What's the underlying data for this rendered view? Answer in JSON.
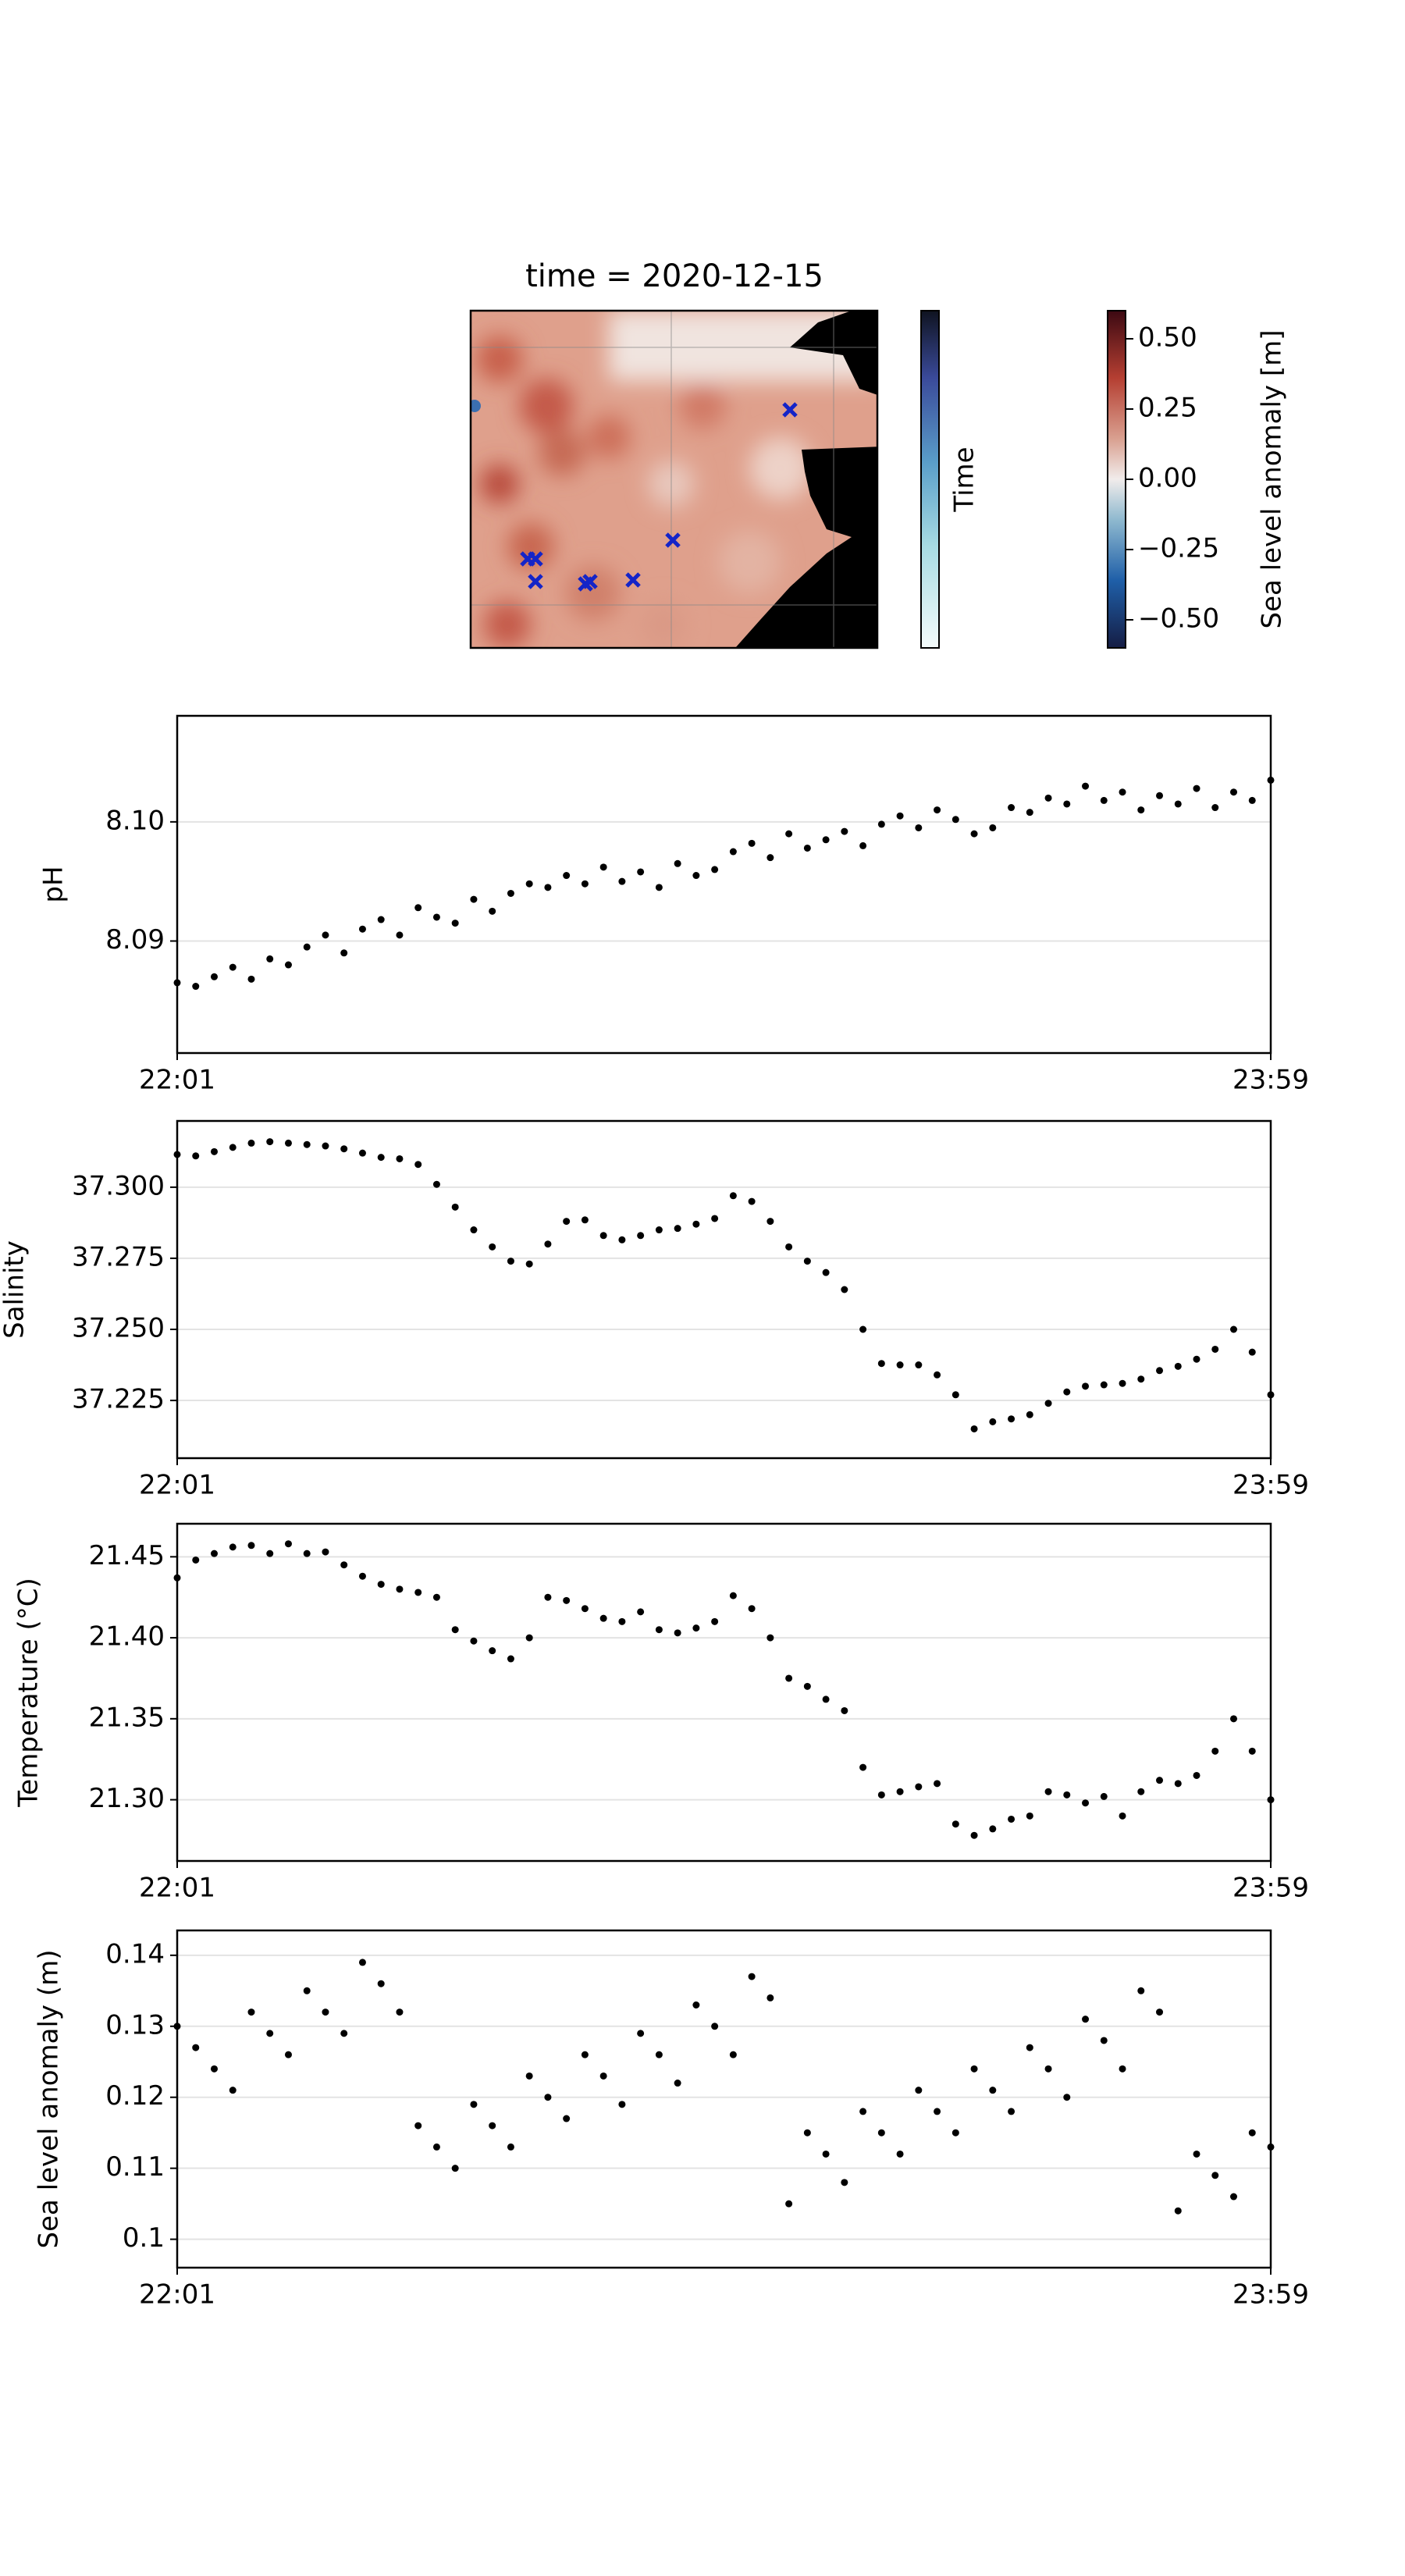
{
  "chart_data": [
    {
      "type": "map",
      "title": "time = 2020-12-15",
      "colorbars": [
        {
          "label": "Time"
        },
        {
          "label": "Sea level anomaly [m]",
          "lim": [
            -0.6,
            0.6
          ],
          "ticks": [
            {
              "value": 0.5,
              "label": "0.50"
            },
            0.25,
            {
              "value": 0,
              "label": "0.00"
            },
            {
              "value": -0.25,
              "label": "−0.25"
            },
            {
              "value": -0.5,
              "label": "−0.50"
            }
          ]
        }
      ]
    },
    {
      "type": "scatter",
      "ylabel": "pH",
      "color": "#000000",
      "grid": true,
      "x": [
        "22:01",
        "22:03",
        "22:05",
        "22:07",
        "22:09",
        "22:11",
        "22:13",
        "22:15",
        "22:17",
        "22:19",
        "22:21",
        "22:23",
        "22:25",
        "22:27",
        "22:29",
        "22:31",
        "22:33",
        "22:35",
        "22:37",
        "22:39",
        "22:41",
        "22:43",
        "22:45",
        "22:47",
        "22:49",
        "22:51",
        "22:53",
        "22:55",
        "22:57",
        "22:59",
        "23:01",
        "23:03",
        "23:05",
        "23:07",
        "23:09",
        "23:11",
        "23:13",
        "23:15",
        "23:17",
        "23:19",
        "23:21",
        "23:23",
        "23:25",
        "23:27",
        "23:29",
        "23:31",
        "23:33",
        "23:35",
        "23:37",
        "23:39",
        "23:41",
        "23:43",
        "23:45",
        "23:47",
        "23:49",
        "23:51",
        "23:53",
        "23:55",
        "23:57",
        "23:59"
      ],
      "values": [
        8.0865,
        8.0862,
        8.087,
        8.0878,
        8.0868,
        8.0885,
        8.088,
        8.0895,
        8.0905,
        8.089,
        8.091,
        8.0918,
        8.0905,
        8.0928,
        8.092,
        8.0915,
        8.0935,
        8.0925,
        8.094,
        8.0948,
        8.0945,
        8.0955,
        8.0948,
        8.0962,
        8.095,
        8.0958,
        8.0945,
        8.0965,
        8.0955,
        8.096,
        8.0975,
        8.0982,
        8.097,
        8.099,
        8.0978,
        8.0985,
        8.0992,
        8.098,
        8.0998,
        8.1005,
        8.0995,
        8.101,
        8.1002,
        8.099,
        8.0995,
        8.1012,
        8.1008,
        8.102,
        8.1015,
        8.103,
        8.1018,
        8.1025,
        8.101,
        8.1022,
        8.1015,
        8.1028,
        8.1012,
        8.1025,
        8.1018,
        8.1035
      ],
      "xlim": [
        "22:01",
        "23:59"
      ],
      "xticks": [
        "22:01",
        "23:59"
      ],
      "ylim": [
        8.0806,
        8.1089
      ],
      "yticks": [
        8.09,
        {
          "value": 8.1,
          "label": "8.10"
        }
      ]
    },
    {
      "type": "scatter",
      "ylabel": "Salinity",
      "color": "#000000",
      "grid": true,
      "x": [
        "22:01",
        "22:03",
        "22:05",
        "22:07",
        "22:09",
        "22:11",
        "22:13",
        "22:15",
        "22:17",
        "22:19",
        "22:21",
        "22:23",
        "22:25",
        "22:27",
        "22:29",
        "22:31",
        "22:33",
        "22:35",
        "22:37",
        "22:39",
        "22:41",
        "22:43",
        "22:45",
        "22:47",
        "22:49",
        "22:51",
        "22:53",
        "22:55",
        "22:57",
        "22:59",
        "23:01",
        "23:03",
        "23:05",
        "23:07",
        "23:09",
        "23:11",
        "23:13",
        "23:15",
        "23:17",
        "23:19",
        "23:21",
        "23:23",
        "23:25",
        "23:27",
        "23:29",
        "23:31",
        "23:33",
        "23:35",
        "23:37",
        "23:39",
        "23:41",
        "23:43",
        "23:45",
        "23:47",
        "23:49",
        "23:51",
        "23:53",
        "23:55",
        "23:57",
        "23:59"
      ],
      "values": [
        37.3115,
        37.311,
        37.3125,
        37.314,
        37.3155,
        37.316,
        37.3155,
        37.315,
        37.3145,
        37.3135,
        37.312,
        37.3105,
        37.31,
        37.308,
        37.301,
        37.293,
        37.285,
        37.279,
        37.274,
        37.273,
        37.28,
        37.288,
        37.2885,
        37.283,
        37.2815,
        37.283,
        37.285,
        37.2855,
        37.287,
        37.289,
        37.297,
        37.295,
        37.288,
        37.279,
        37.274,
        37.27,
        37.264,
        37.25,
        37.238,
        37.2375,
        37.2375,
        37.234,
        37.227,
        37.215,
        37.2175,
        37.2185,
        37.22,
        37.224,
        37.228,
        37.23,
        37.2305,
        37.231,
        37.2325,
        37.2355,
        37.237,
        37.2395,
        37.243,
        37.25,
        37.242,
        37.227
      ],
      "xlim": [
        "22:01",
        "23:59"
      ],
      "xticks": [
        "22:01",
        "23:59"
      ],
      "ylim": [
        37.2047,
        37.3233
      ],
      "yticks": [
        37.225,
        {
          "value": 37.25,
          "label": "37.250"
        },
        37.275,
        {
          "value": 37.3,
          "label": "37.300"
        }
      ]
    },
    {
      "type": "scatter",
      "ylabel": "Temperature (°C)",
      "color": "#000000",
      "grid": true,
      "x": [
        "22:01",
        "22:03",
        "22:05",
        "22:07",
        "22:09",
        "22:11",
        "22:13",
        "22:15",
        "22:17",
        "22:19",
        "22:21",
        "22:23",
        "22:25",
        "22:27",
        "22:29",
        "22:31",
        "22:33",
        "22:35",
        "22:37",
        "22:39",
        "22:41",
        "22:43",
        "22:45",
        "22:47",
        "22:49",
        "22:51",
        "22:53",
        "22:55",
        "22:57",
        "22:59",
        "23:01",
        "23:03",
        "23:05",
        "23:07",
        "23:09",
        "23:11",
        "23:13",
        "23:15",
        "23:17",
        "23:19",
        "23:21",
        "23:23",
        "23:25",
        "23:27",
        "23:29",
        "23:31",
        "23:33",
        "23:35",
        "23:37",
        "23:39",
        "23:41",
        "23:43",
        "23:45",
        "23:47",
        "23:49",
        "23:51",
        "23:53",
        "23:55",
        "23:57",
        "23:59"
      ],
      "values": [
        21.437,
        21.448,
        21.452,
        21.456,
        21.457,
        21.452,
        21.458,
        21.452,
        21.453,
        21.445,
        21.438,
        21.433,
        21.43,
        21.428,
        21.425,
        21.405,
        21.398,
        21.392,
        21.387,
        21.4,
        21.425,
        21.423,
        21.418,
        21.412,
        21.41,
        21.416,
        21.405,
        21.403,
        21.406,
        21.41,
        21.426,
        21.418,
        21.4,
        21.375,
        21.37,
        21.362,
        21.355,
        21.32,
        21.303,
        21.305,
        21.308,
        21.31,
        21.285,
        21.278,
        21.282,
        21.288,
        21.29,
        21.305,
        21.303,
        21.298,
        21.302,
        21.29,
        21.305,
        21.312,
        21.31,
        21.315,
        21.33,
        21.35,
        21.33,
        21.3
      ],
      "xlim": [
        "22:01",
        "23:59"
      ],
      "xticks": [
        "22:01",
        "23:59"
      ],
      "ylim": [
        21.2622,
        21.4704
      ],
      "yticks": [
        {
          "value": 21.3,
          "label": "21.30"
        },
        21.35,
        {
          "value": 21.4,
          "label": "21.40"
        },
        21.45
      ]
    },
    {
      "type": "scatter",
      "ylabel": "Sea level anomaly (m)",
      "color": "#000000",
      "grid": true,
      "x": [
        "22:01",
        "22:03",
        "22:05",
        "22:07",
        "22:09",
        "22:11",
        "22:13",
        "22:15",
        "22:17",
        "22:19",
        "22:21",
        "22:23",
        "22:25",
        "22:27",
        "22:29",
        "22:31",
        "22:33",
        "22:35",
        "22:37",
        "22:39",
        "22:41",
        "22:43",
        "22:45",
        "22:47",
        "22:49",
        "22:51",
        "22:53",
        "22:55",
        "22:57",
        "22:59",
        "23:01",
        "23:03",
        "23:05",
        "23:07",
        "23:09",
        "23:11",
        "23:13",
        "23:15",
        "23:17",
        "23:19",
        "23:21",
        "23:23",
        "23:25",
        "23:27",
        "23:29",
        "23:31",
        "23:33",
        "23:35",
        "23:37",
        "23:39",
        "23:41",
        "23:43",
        "23:45",
        "23:47",
        "23:49",
        "23:51",
        "23:53",
        "23:55",
        "23:57",
        "23:59"
      ],
      "values": [
        0.13,
        0.127,
        0.124,
        0.121,
        0.132,
        0.129,
        0.126,
        0.135,
        0.132,
        0.129,
        0.139,
        0.136,
        0.132,
        0.116,
        0.113,
        0.11,
        0.119,
        0.116,
        0.113,
        0.123,
        0.12,
        0.117,
        0.126,
        0.123,
        0.119,
        0.129,
        0.126,
        0.122,
        0.133,
        0.13,
        0.126,
        0.137,
        0.134,
        0.105,
        0.115,
        0.112,
        0.108,
        0.118,
        0.115,
        0.112,
        0.121,
        0.118,
        0.115,
        0.124,
        0.121,
        0.118,
        0.127,
        0.124,
        0.12,
        0.131,
        0.128,
        0.124,
        0.135,
        0.132,
        0.104,
        0.112,
        0.109,
        0.106,
        0.115,
        0.113
      ],
      "xlim": [
        "22:01",
        "23:59"
      ],
      "xticks": [
        "22:01",
        "23:59"
      ],
      "ylim": [
        0.096,
        0.1435
      ],
      "yticks": [
        0.1,
        0.11,
        0.12,
        0.13,
        0.14
      ]
    }
  ]
}
